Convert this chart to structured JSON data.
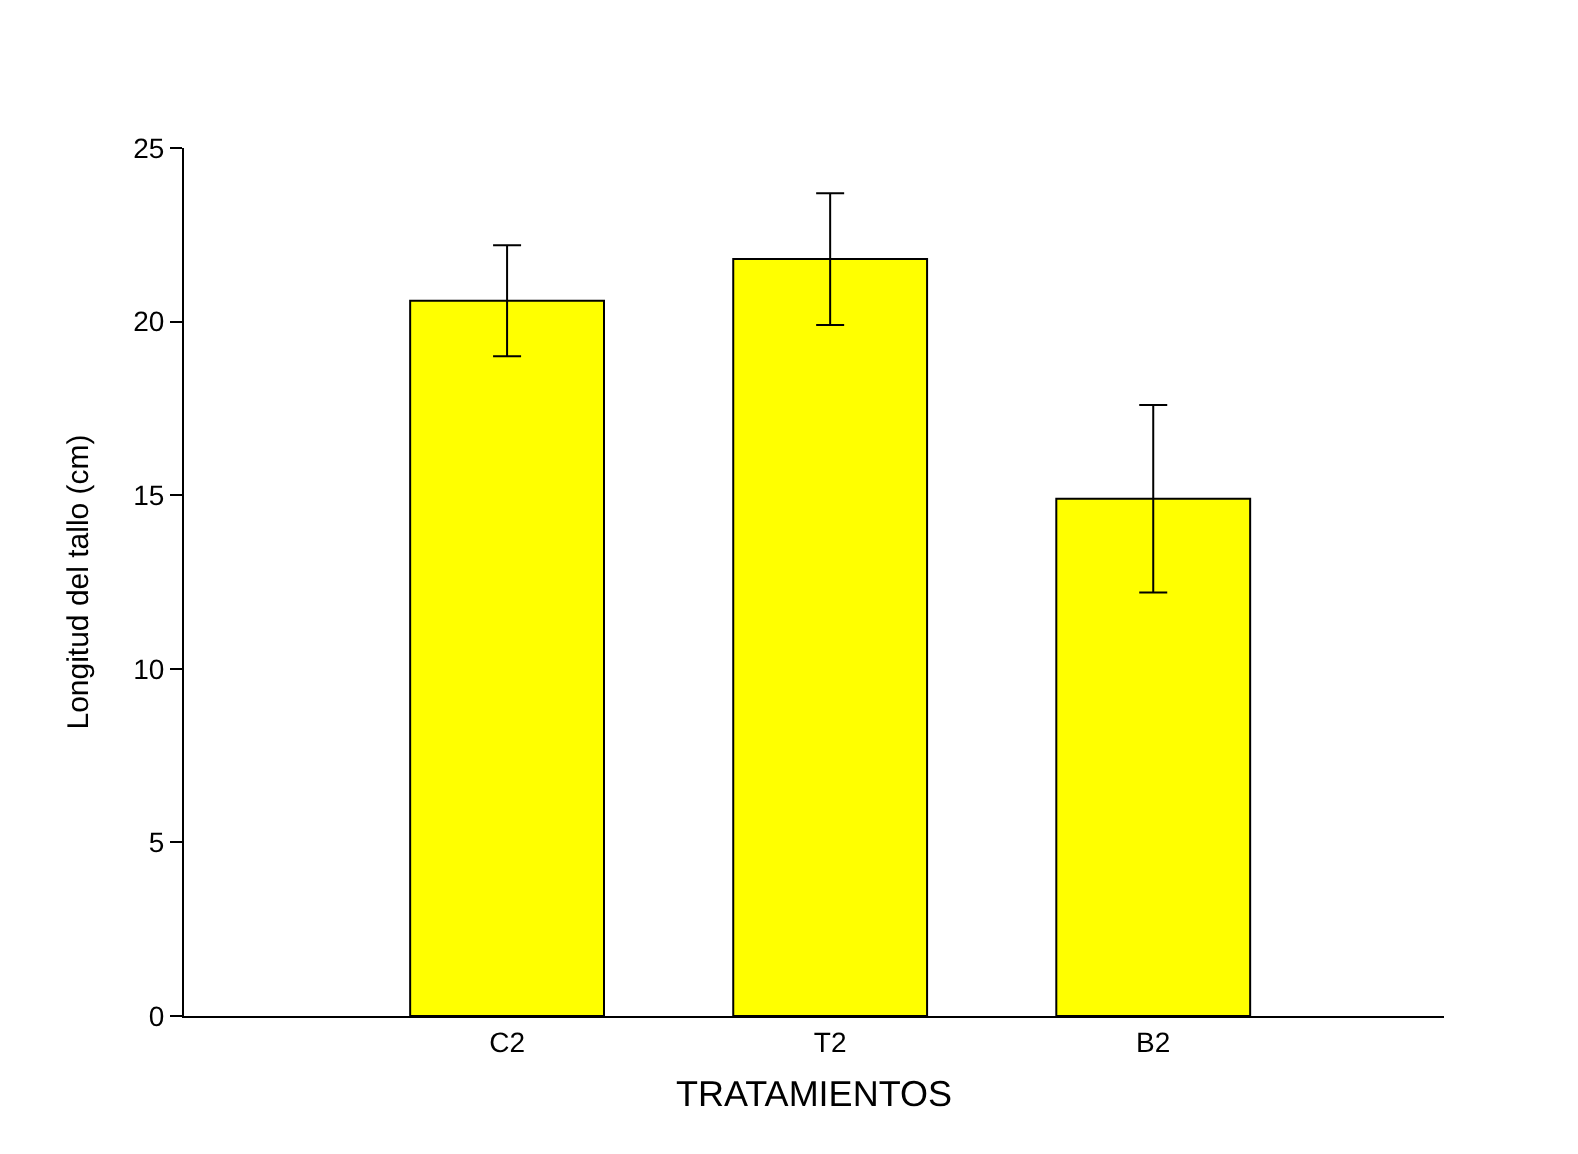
{
  "chart_data": {
    "type": "bar",
    "xlabel": "TRATAMIENTOS",
    "ylabel": "Longitud del tallo (cm)",
    "categories": [
      "C2",
      "T2",
      "B2"
    ],
    "values": [
      20.6,
      21.8,
      14.9
    ],
    "errors": [
      1.6,
      1.9,
      2.7
    ],
    "color": "#ffff00",
    "ylim": [
      0,
      25
    ],
    "yticks": [
      0,
      5,
      10,
      15,
      20,
      25
    ],
    "grid": false
  }
}
